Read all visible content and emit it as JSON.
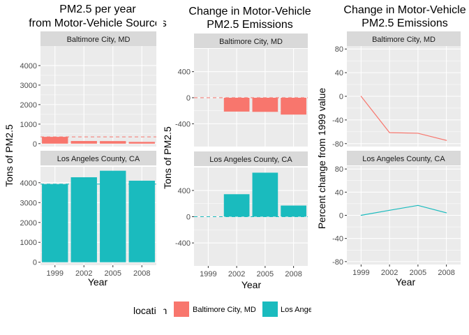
{
  "colors": {
    "baltimore": "#F8766D",
    "los_angeles": "#1ABBBE",
    "panel_bg": "#EBEBEB",
    "strip_bg": "#D9D9D9",
    "grid": "#FFFFFF"
  },
  "legend": {
    "title": "location",
    "items": [
      {
        "label": "Baltimore City, MD",
        "color": "#F8766D"
      },
      {
        "label": "Los Angeles County, CA",
        "color": "#1ABBBE"
      }
    ]
  },
  "chart_data": [
    {
      "type": "bar",
      "title": [
        "PM2.5 per year",
        "from Motor-Vehicle Sources"
      ],
      "xlabel": "Year",
      "ylabel": "Tons of PM2.5",
      "categories": [
        "1999",
        "2002",
        "2005",
        "2008"
      ],
      "facets": [
        {
          "label": "Baltimore City, MD",
          "color": "#F8766D",
          "values": [
            347,
            134,
            130,
            88
          ],
          "ylim": [
            -150,
            5000
          ],
          "yticks": [
            0,
            1000,
            2000,
            3000,
            4000
          ],
          "hline": 347
        },
        {
          "label": "Los Angeles County, CA",
          "color": "#1ABBBE",
          "values": [
            3931,
            4274,
            4602,
            4101
          ],
          "ylim": [
            -150,
            4800
          ],
          "yticks": [
            0,
            1000,
            2000,
            3000,
            4000
          ],
          "hline": 3931
        }
      ]
    },
    {
      "type": "bar",
      "title": [
        "Change in Motor-Vehicle",
        "PM2.5 Emissions"
      ],
      "xlabel": "Year",
      "ylabel": "Tons of PM2.5",
      "categories": [
        "1999",
        "2002",
        "2005",
        "2008"
      ],
      "facets": [
        {
          "label": "Baltimore City, MD",
          "color": "#F8766D",
          "values": [
            0,
            -213,
            -217,
            -259
          ],
          "ylim": [
            -750,
            750
          ],
          "yticks": [
            -400,
            0,
            400
          ],
          "hline": 0
        },
        {
          "label": "Los Angeles County, CA",
          "color": "#1ABBBE",
          "values": [
            0,
            343,
            671,
            170
          ],
          "ylim": [
            -750,
            750
          ],
          "yticks": [
            -400,
            0,
            400
          ],
          "hline": 0
        }
      ]
    },
    {
      "type": "line",
      "title": [
        "Change in Motor-Vehicle",
        "PM2.5 Emissions"
      ],
      "xlabel": "Year",
      "ylabel": "Percent change from 1999 value",
      "categories": [
        "1999",
        "2002",
        "2005",
        "2008"
      ],
      "facets": [
        {
          "label": "Baltimore City, MD",
          "color": "#F8766D",
          "values": [
            0,
            -61.4,
            -62.5,
            -74.5
          ],
          "ylim": [
            -85,
            85
          ],
          "yticks": [
            -80,
            -40,
            0,
            40,
            80
          ]
        },
        {
          "label": "Los Angeles County, CA",
          "color": "#1ABBBE",
          "values": [
            0,
            8.7,
            17.1,
            4.3
          ],
          "ylim": [
            -85,
            85
          ],
          "yticks": [
            -80,
            -40,
            0,
            40,
            80
          ]
        }
      ]
    }
  ]
}
